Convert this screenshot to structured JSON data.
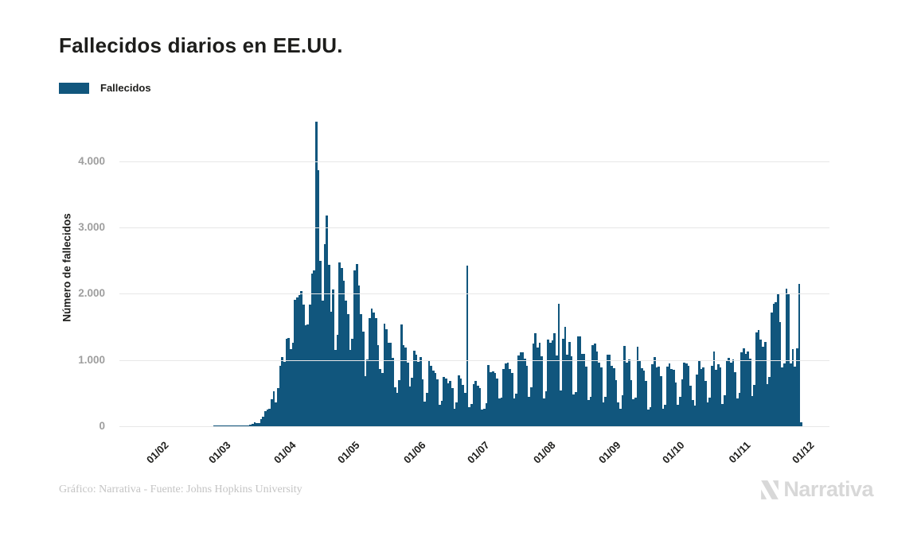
{
  "header": {
    "title": "Fallecidos diarios en EE.UU."
  },
  "legend": {
    "label": "Fallecidos",
    "color": "#11567d"
  },
  "footer": {
    "credit": "Gráfico: Narrativa - Fuente: Johns Hopkins University",
    "brand": "Narrativa"
  },
  "colors": {
    "bar": "#11567d",
    "grid": "#e7e7e7",
    "axis_text": "#9e9e9e",
    "dark_text": "#1d1d1b",
    "muted_text": "#c4c4c4",
    "logo": "#d8d8d8"
  },
  "chart_data": {
    "type": "bar",
    "title": "Fallecidos diarios en EE.UU.",
    "series_name": "Fallecidos",
    "ylabel": "Número de fallecidos",
    "xlabel": "",
    "legend_position": "top-left",
    "grid": "horizontal",
    "start_date": "2020-02-01",
    "ylim": [
      0,
      4750
    ],
    "yticks": [
      {
        "label": "0",
        "value": 0
      },
      {
        "label": "1.000",
        "value": 1000
      },
      {
        "label": "2.000",
        "value": 2000
      },
      {
        "label": "3.000",
        "value": 3000
      },
      {
        "label": "4.000",
        "value": 4000
      }
    ],
    "xticks": [
      {
        "label": "01/02",
        "index": 0
      },
      {
        "label": "01/03",
        "index": 29
      },
      {
        "label": "01/04",
        "index": 60
      },
      {
        "label": "01/05",
        "index": 90
      },
      {
        "label": "01/06",
        "index": 121
      },
      {
        "label": "01/07",
        "index": 151
      },
      {
        "label": "01/08",
        "index": 182
      },
      {
        "label": "01/09",
        "index": 213
      },
      {
        "label": "01/10",
        "index": 243
      },
      {
        "label": "01/11",
        "index": 274
      },
      {
        "label": "01/12",
        "index": 304
      }
    ],
    "values": [
      0,
      0,
      0,
      0,
      0,
      0,
      0,
      0,
      0,
      0,
      0,
      0,
      0,
      0,
      0,
      0,
      0,
      0,
      0,
      0,
      0,
      0,
      0,
      0,
      0,
      0,
      0,
      0,
      1,
      1,
      4,
      3,
      4,
      2,
      3,
      2,
      3,
      4,
      4,
      8,
      3,
      8,
      9,
      11,
      18,
      23,
      41,
      57,
      49,
      46,
      111,
      140,
      225,
      247,
      268,
      411,
      525,
      363,
      573,
      912,
      1049,
      968,
      1321,
      1331,
      1165,
      1255,
      1906,
      1943,
      1985,
      2035,
      1830,
      1528,
      1535,
      1836,
      2299,
      2350,
      4591,
      3857,
      2494,
      1891,
      2751,
      3179,
      2437,
      1732,
      2065,
      1150,
      1384,
      2470,
      2390,
      2201,
      1897,
      1691,
      1154,
      1324,
      2352,
      2448,
      2129,
      1687,
      1422,
      750,
      1008,
      1630,
      1772,
      1715,
      1635,
      1218,
      865,
      808,
      1552,
      1461,
      1263,
      1260,
      1035,
      592,
      505,
      693,
      1535,
      1223,
      1193,
      960,
      605,
      730,
      1134,
      1083,
      974,
      1045,
      709,
      372,
      503,
      979,
      906,
      840,
      802,
      711,
      330,
      389,
      740,
      722,
      650,
      679,
      580,
      267,
      358,
      767,
      722,
      621,
      500,
      2425,
      288,
      335,
      632,
      679,
      613,
      575,
      254,
      263,
      351,
      926,
      811,
      830,
      799,
      715,
      420,
      430,
      858,
      943,
      963,
      869,
      805,
      420,
      487,
      1070,
      1117,
      1115,
      1019,
      909,
      445,
      593,
      1244,
      1403,
      1187,
      1261,
      1051,
      415,
      532,
      1302,
      1262,
      1290,
      1400,
      1064,
      1847,
      541,
      1324,
      1504,
      1076,
      1273,
      1057,
      483,
      513,
      1358,
      1356,
      1090,
      1094,
      902,
      402,
      448,
      1222,
      1250,
      1127,
      964,
      888,
      365,
      448,
      1083,
      1077,
      910,
      870,
      691,
      364,
      267,
      463,
      1208,
      961,
      1002,
      690,
      406,
      430,
      1203,
      983,
      877,
      839,
      683,
      258,
      288,
      936,
      1043,
      891,
      905,
      752,
      270,
      330,
      898,
      942,
      860,
      847,
      658,
      320,
      442,
      712,
      955,
      951,
      906,
      610,
      398,
      309,
      785,
      987,
      860,
      885,
      684,
      361,
      435,
      912,
      1122,
      856,
      934,
      892,
      340,
      464,
      983,
      1027,
      963,
      1002,
      818,
      417,
      505,
      1118,
      1175,
      1094,
      1126,
      1016,
      458,
      620,
      1420,
      1449,
      1310,
      1200,
      1270,
      635,
      747,
      1715,
      1848,
      1877,
      1987,
      1575,
      889,
      947,
      2081,
      1990,
      950,
      1160,
      905,
      1172,
      2150,
      60
    ]
  }
}
